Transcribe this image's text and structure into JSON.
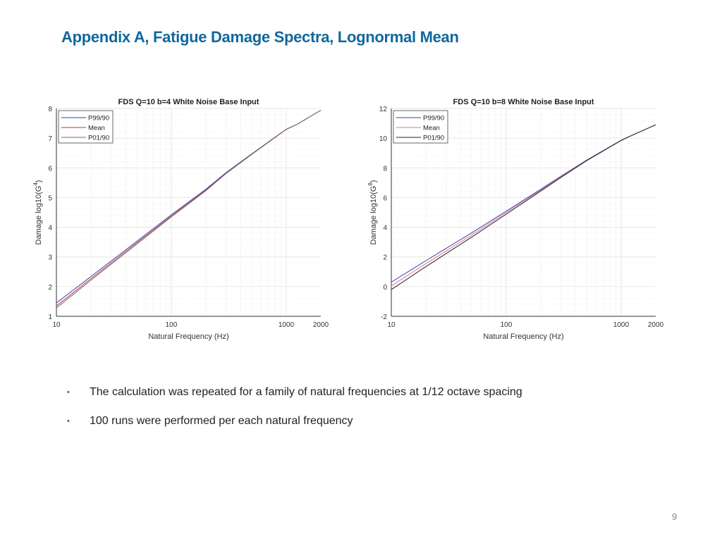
{
  "slide": {
    "title": "Appendix A, Fatigue Damage Spectra, Lognormal Mean",
    "bullets": [
      "The calculation was repeated for a family of natural frequencies at 1/12 octave spacing",
      "100 runs were performed per each natural frequency"
    ],
    "page_number": "9",
    "title_color": "#10689c"
  },
  "chart_data": [
    {
      "type": "line",
      "title": "FDS Q=10 b=4   White Noise Base Input",
      "xlabel": "Natural Frequency (Hz)",
      "ylabel_prefix": "Damage log10(G",
      "ylabel_sup": "4",
      "ylabel_suffix": ")",
      "xscale": "log",
      "xlim": [
        10,
        2000
      ],
      "ylim": [
        1,
        8
      ],
      "xticks": [
        "10",
        "100",
        "1000",
        "2000"
      ],
      "yticks": [
        "1",
        "2",
        "3",
        "4",
        "5",
        "6",
        "7",
        "8"
      ],
      "grid": true,
      "legend_placement": "top-left",
      "x": [
        10,
        20,
        50,
        100,
        200,
        300,
        500,
        1000,
        1250,
        2000
      ],
      "series": [
        {
          "name": "P99/90",
          "color": "#3a3ab8",
          "values": [
            1.45,
            2.34,
            3.52,
            4.42,
            5.28,
            5.84,
            6.47,
            7.3,
            7.47,
            7.94
          ]
        },
        {
          "name": "Mean",
          "color": "#c0392b",
          "values": [
            1.35,
            2.27,
            3.47,
            4.38,
            5.25,
            5.82,
            6.46,
            7.3,
            7.47,
            7.94
          ]
        },
        {
          "name": "P01/90",
          "color": "#707070",
          "values": [
            1.28,
            2.22,
            3.43,
            4.35,
            5.23,
            5.81,
            6.45,
            7.29,
            7.47,
            7.94
          ]
        }
      ]
    },
    {
      "type": "line",
      "title": "FDS Q=10 b=8   White Noise Base Input",
      "xlabel": "Natural Frequency (Hz)",
      "ylabel_prefix": "Damage log10(G",
      "ylabel_sup": "8",
      "ylabel_suffix": ")",
      "xscale": "log",
      "xlim": [
        10,
        2000
      ],
      "ylim": [
        -2,
        12
      ],
      "xticks": [
        "10",
        "100",
        "1000",
        "2000"
      ],
      "yticks": [
        "-2",
        "0",
        "2",
        "4",
        "6",
        "8",
        "10",
        "12"
      ],
      "grid": true,
      "legend_placement": "top-left",
      "x": [
        10,
        20,
        50,
        100,
        200,
        300,
        500,
        1000,
        1250,
        2000
      ],
      "series": [
        {
          "name": "P99/90",
          "color": "#3a3ab8",
          "values": [
            0.3,
            1.75,
            3.62,
            5.08,
            6.56,
            7.44,
            8.52,
            9.86,
            10.2,
            10.9
          ]
        },
        {
          "name": "Mean",
          "color": "#e07a86",
          "values": [
            0.05,
            1.55,
            3.47,
            4.98,
            6.5,
            7.4,
            8.5,
            9.85,
            10.2,
            10.9
          ]
        },
        {
          "name": "P01/90",
          "color": "#222222",
          "values": [
            -0.2,
            1.35,
            3.33,
            4.88,
            6.44,
            7.36,
            8.48,
            9.84,
            10.2,
            10.9
          ]
        }
      ]
    }
  ]
}
